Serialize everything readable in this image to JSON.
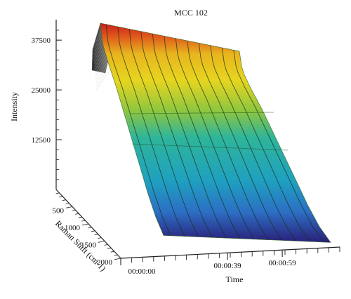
{
  "chart_data": {
    "type": "surface",
    "title": "MCC 102",
    "zlabel": "Intensity",
    "z_ticks": [
      "37500",
      "25000",
      "12500"
    ],
    "z_tick_values": [
      37500,
      25000,
      12500
    ],
    "ylabel": "Raman Shift (cm-1)",
    "y_ticks": [
      "500",
      "1000",
      "1500",
      "2000"
    ],
    "y_tick_values": [
      500,
      1000,
      1500,
      2000
    ],
    "xlabel": "Time",
    "x_ticks": [
      "00:00:00",
      "00:00:39",
      "00:00:59"
    ],
    "x_tick_values": [
      0,
      39,
      59
    ],
    "zlim": [
      0,
      42000
    ],
    "colormap": [
      "#2b1f7a",
      "#2c6fc4",
      "#1fa0c0",
      "#2fb59a",
      "#8ec63f",
      "#e7d51f",
      "#e8b51e",
      "#e0581c",
      "#c8201a"
    ],
    "surface_ridges": 12,
    "intensity_profile": {
      "raman_shift": [
        0,
        50,
        100,
        250,
        500,
        750,
        1000,
        1250,
        1500,
        1750,
        2000
      ],
      "intensity": [
        41000,
        38000,
        36500,
        33500,
        29000,
        24000,
        19000,
        14000,
        9000,
        4500,
        1000
      ]
    }
  }
}
